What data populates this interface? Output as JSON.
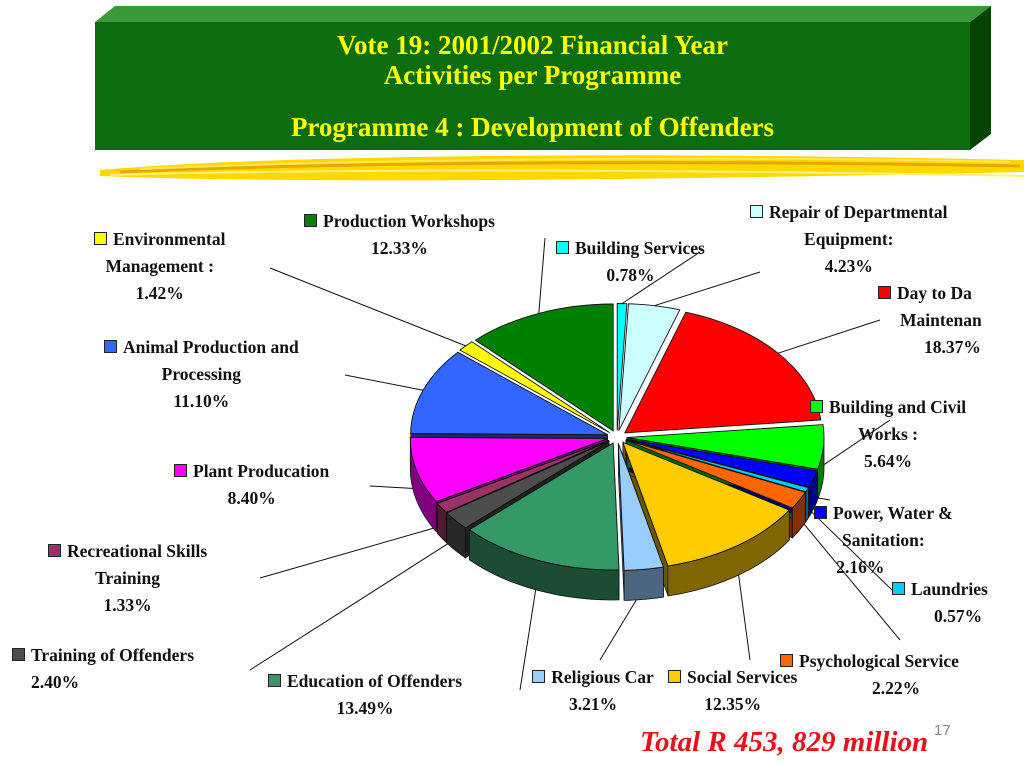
{
  "header": {
    "line1": "Vote 19: 2001/2002 Financial Year",
    "line2": "Activities per Programme",
    "line3": "Programme 4 : Development of Offenders"
  },
  "footer": {
    "total": "Total R 453, 829 million",
    "page_number": "17"
  },
  "colors": {
    "header_green": "#0b6d0b",
    "header_text": "#ffff00",
    "total_text": "#e8101c"
  },
  "chart_data": {
    "type": "pie",
    "style": "3d-exploded",
    "unit": "%",
    "slices": [
      {
        "line1": "Building Services",
        "line2": "",
        "value_text": "0.78%",
        "value": 0.78,
        "color": "#00ffff"
      },
      {
        "line1": "Repair of Departmental",
        "line2": "Equipment:",
        "value_text": "4.23%",
        "value": 4.23,
        "color": "#ccffff"
      },
      {
        "line1": "Day to Da",
        "line2": "Maintenan",
        "value_text": "18.37%",
        "value": 18.37,
        "color": "#ff0000"
      },
      {
        "line1": "Building and Civil",
        "line2": "Works :",
        "value_text": "5.64%",
        "value": 5.64,
        "color": "#00ff00"
      },
      {
        "line1": "Power, Water &",
        "line2": "Sanitation:",
        "value_text": "2.16%",
        "value": 2.16,
        "color": "#0000ff"
      },
      {
        "line1": "Laundries",
        "line2": "",
        "value_text": "0.57%",
        "value": 0.57,
        "color": "#00ccff"
      },
      {
        "line1": "Psychological Service",
        "line2": "",
        "value_text": "2.22%",
        "value": 2.22,
        "color": "#ff6600"
      },
      {
        "line1": "Social Services",
        "line2": "",
        "value_text": "12.35%",
        "value": 12.35,
        "color": "#ffcc00"
      },
      {
        "line1": "Religious Car",
        "line2": "",
        "value_text": "3.21%",
        "value": 3.21,
        "color": "#99ccff"
      },
      {
        "line1": "Education of Offenders",
        "line2": "",
        "value_text": "13.49%",
        "value": 13.49,
        "color": "#339966"
      },
      {
        "line1": "Training of Offenders",
        "line2": "",
        "value_text": "2.40%",
        "value": 2.4,
        "color": "#4d4d4d"
      },
      {
        "line1": "Recreational Skills",
        "line2": "Training",
        "value_text": "1.33%",
        "value": 1.33,
        "color": "#993366"
      },
      {
        "line1": "Plant Producation",
        "line2": "",
        "value_text": "8.40%",
        "value": 8.4,
        "color": "#ff00ff"
      },
      {
        "line1": "Animal Production and",
        "line2": "Processing",
        "value_text": "11.10%",
        "value": 11.1,
        "color": "#3366ff"
      },
      {
        "line1": "Environmental",
        "line2": "Management :",
        "value_text": "1.42%",
        "value": 1.42,
        "color": "#ffff00"
      },
      {
        "line1": "Production Workshops",
        "line2": "",
        "value_text": "12.33%",
        "value": 12.33,
        "color": "#008000"
      }
    ]
  }
}
